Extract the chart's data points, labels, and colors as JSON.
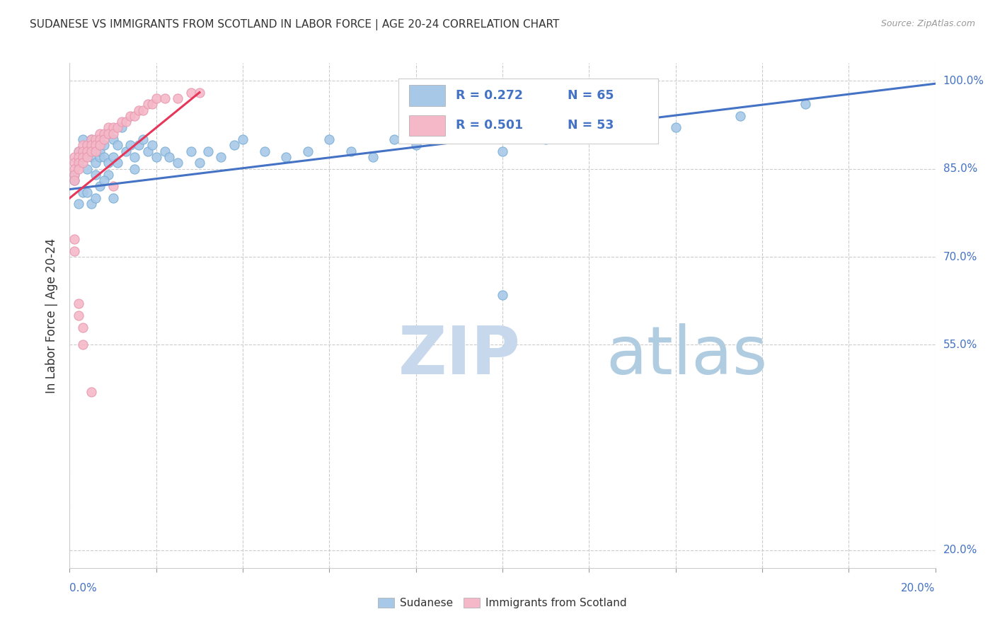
{
  "title": "SUDANESE VS IMMIGRANTS FROM SCOTLAND IN LABOR FORCE | AGE 20-24 CORRELATION CHART",
  "source": "Source: ZipAtlas.com",
  "ylabel": "In Labor Force | Age 20-24",
  "watermark": "ZIPatlas",
  "legend_R1": "R = 0.272",
  "legend_N1": "N = 65",
  "legend_R2": "R = 0.501",
  "legend_N2": "N = 53",
  "blue_color": "#a8c8e8",
  "pink_color": "#f4b8c8",
  "blue_line_color": "#4472c4",
  "pink_line_color": "#e8365a",
  "axis_label_color": "#4472c4",
  "y_tick_vals": [
    1.0,
    0.85,
    0.7,
    0.55,
    0.2
  ],
  "y_tick_labels": [
    "100.0%",
    "85.0%",
    "70.0%",
    "55.0%",
    "20.0%"
  ],
  "xlim": [
    0.0,
    0.2
  ],
  "ylim": [
    0.17,
    1.03
  ],
  "blue_trend_x": [
    0.0,
    0.2
  ],
  "blue_trend_y": [
    0.815,
    0.995
  ],
  "pink_trend_x": [
    0.0,
    0.03
  ],
  "pink_trend_y": [
    0.8,
    0.98
  ],
  "blue_x": [
    0.001,
    0.001,
    0.002,
    0.002,
    0.003,
    0.003,
    0.004,
    0.004,
    0.005,
    0.005,
    0.006,
    0.006,
    0.007,
    0.007,
    0.008,
    0.008,
    0.009,
    0.009,
    0.01,
    0.01,
    0.011,
    0.011,
    0.012,
    0.013,
    0.014,
    0.015,
    0.015,
    0.016,
    0.017,
    0.018,
    0.019,
    0.02,
    0.022,
    0.023,
    0.025,
    0.028,
    0.03,
    0.032,
    0.035,
    0.038,
    0.04,
    0.045,
    0.05,
    0.055,
    0.06,
    0.065,
    0.07,
    0.075,
    0.08,
    0.09,
    0.1,
    0.11,
    0.12,
    0.14,
    0.155,
    0.17,
    0.01,
    0.005,
    0.007,
    0.003,
    0.002,
    0.004,
    0.006,
    0.008,
    0.1
  ],
  "blue_y": [
    0.84,
    0.83,
    0.86,
    0.88,
    0.9,
    0.87,
    0.85,
    0.88,
    0.9,
    0.87,
    0.86,
    0.84,
    0.87,
    0.88,
    0.89,
    0.87,
    0.86,
    0.84,
    0.9,
    0.87,
    0.89,
    0.86,
    0.92,
    0.88,
    0.89,
    0.87,
    0.85,
    0.89,
    0.9,
    0.88,
    0.89,
    0.87,
    0.88,
    0.87,
    0.86,
    0.88,
    0.86,
    0.88,
    0.87,
    0.89,
    0.9,
    0.88,
    0.87,
    0.88,
    0.9,
    0.88,
    0.87,
    0.9,
    0.89,
    0.91,
    0.88,
    0.9,
    0.91,
    0.92,
    0.94,
    0.96,
    0.8,
    0.79,
    0.82,
    0.81,
    0.79,
    0.81,
    0.8,
    0.83,
    0.635
  ],
  "pink_x": [
    0.001,
    0.001,
    0.001,
    0.001,
    0.001,
    0.002,
    0.002,
    0.002,
    0.002,
    0.003,
    0.003,
    0.003,
    0.003,
    0.004,
    0.004,
    0.004,
    0.005,
    0.005,
    0.005,
    0.006,
    0.006,
    0.006,
    0.007,
    0.007,
    0.007,
    0.008,
    0.008,
    0.009,
    0.009,
    0.01,
    0.01,
    0.011,
    0.012,
    0.013,
    0.014,
    0.015,
    0.016,
    0.017,
    0.018,
    0.019,
    0.02,
    0.022,
    0.025,
    0.028,
    0.03,
    0.001,
    0.001,
    0.002,
    0.002,
    0.003,
    0.003,
    0.005,
    0.01
  ],
  "pink_y": [
    0.87,
    0.86,
    0.85,
    0.84,
    0.83,
    0.88,
    0.87,
    0.86,
    0.85,
    0.89,
    0.88,
    0.87,
    0.86,
    0.89,
    0.88,
    0.87,
    0.9,
    0.89,
    0.88,
    0.9,
    0.89,
    0.88,
    0.91,
    0.9,
    0.89,
    0.91,
    0.9,
    0.92,
    0.91,
    0.92,
    0.91,
    0.92,
    0.93,
    0.93,
    0.94,
    0.94,
    0.95,
    0.95,
    0.96,
    0.96,
    0.97,
    0.97,
    0.97,
    0.98,
    0.98,
    0.73,
    0.71,
    0.62,
    0.6,
    0.58,
    0.55,
    0.47,
    0.82
  ]
}
